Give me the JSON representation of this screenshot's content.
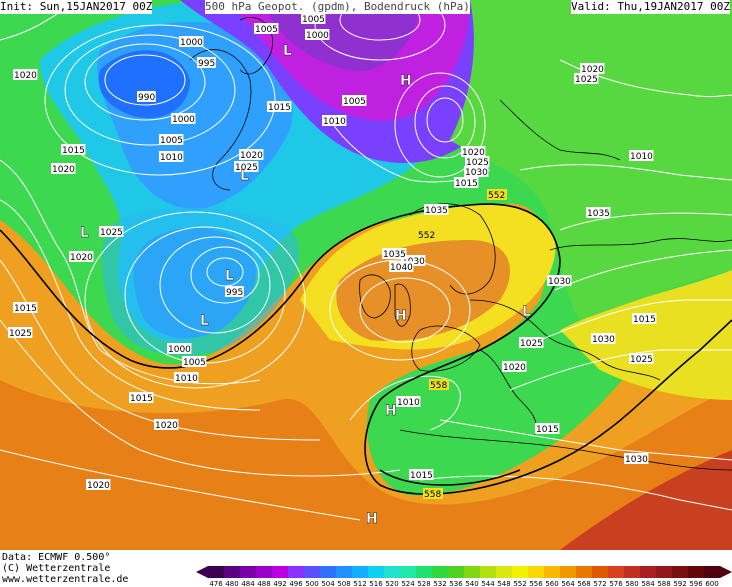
{
  "header": {
    "init": "Init: Sun,15JAN2017 00Z",
    "title": "500 hPa Geopot. (gpdm), Bodendruck (hPa)",
    "valid": "Valid: Thu,19JAN2017 00Z"
  },
  "footer": {
    "data": "Data: ECMWF  0.500°",
    "copyright": "(C) Wetterzentrale",
    "url": "www.wetterzentrale.de"
  },
  "scale": {
    "values": [
      "476",
      "480",
      "484",
      "488",
      "492",
      "496",
      "500",
      "504",
      "508",
      "512",
      "516",
      "520",
      "524",
      "528",
      "532",
      "536",
      "540",
      "544",
      "548",
      "552",
      "556",
      "560",
      "564",
      "568",
      "572",
      "576",
      "580",
      "584",
      "588",
      "592",
      "596",
      "600"
    ],
    "colors": [
      "#3a0050",
      "#5c0080",
      "#7a00a8",
      "#9a00c8",
      "#b800e0",
      "#8a30ff",
      "#5a50ff",
      "#3070ff",
      "#2090ff",
      "#10b0ff",
      "#10d0f0",
      "#20e0d0",
      "#20e8a8",
      "#20e070",
      "#30d840",
      "#50d020",
      "#80d810",
      "#b0e010",
      "#d8e810",
      "#f0f000",
      "#f8d800",
      "#f8b800",
      "#f09800",
      "#e87800",
      "#e05800",
      "#d84020",
      "#c03020",
      "#a82020",
      "#901818",
      "#781010",
      "#600808",
      "#500010"
    ]
  },
  "pressure_centers": [
    {
      "label": "L"
    },
    {
      "label": "L"
    },
    {
      "label": "L"
    },
    {
      "label": "L"
    },
    {
      "label": "L"
    },
    {
      "label": "L"
    },
    {
      "label": "H"
    },
    {
      "label": "H"
    },
    {
      "label": "H"
    },
    {
      "label": "H"
    }
  ],
  "isobar_labels": [
    "1000",
    "1005",
    "995",
    "1005",
    "990",
    "1000",
    "1005",
    "1010",
    "1015",
    "1020",
    "1025",
    "1020",
    "1015",
    "1010",
    "1005",
    "1000",
    "995",
    "1000",
    "1005",
    "1010",
    "1015",
    "1020",
    "1025",
    "1030",
    "1035",
    "1040",
    "1035",
    "1030",
    "1025",
    "1020",
    "1015",
    "1010",
    "1010",
    "1015",
    "1020",
    "1025",
    "1030",
    "1020",
    "1015",
    "1025",
    "1020",
    "1015",
    "1020",
    "1025",
    "1030",
    "1035",
    "1030",
    "1025",
    "1020",
    "1015"
  ],
  "geopotential_labels": [
    "552",
    "552",
    "558",
    "558"
  ]
}
